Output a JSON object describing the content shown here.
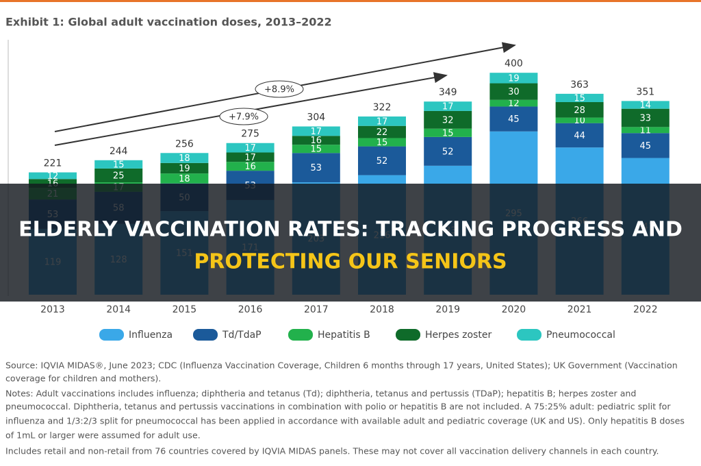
{
  "chart_data": {
    "type": "stacked-bar",
    "title": "Exhibit 1: Global adult vaccination doses, 2013–2022",
    "categories": [
      "2013",
      "2014",
      "2015",
      "2016",
      "2017",
      "2018",
      "2019",
      "2020",
      "2021",
      "2022"
    ],
    "series": [
      {
        "name": "Influenza",
        "color": "#3aa8e8",
        "values": [
          119,
          128,
          151,
          171,
          203,
          216,
          233,
          295,
          266,
          247
        ]
      },
      {
        "name": "Td/TdaP",
        "color": "#1b5a9a",
        "values": [
          53,
          58,
          50,
          53,
          53,
          52,
          52,
          45,
          44,
          45
        ]
      },
      {
        "name": "Hepatitis B",
        "color": "#22b14c",
        "values": [
          21,
          17,
          18,
          16,
          15,
          15,
          15,
          12,
          10,
          11
        ]
      },
      {
        "name": "Herpes zoster",
        "color": "#0f6b2a",
        "values": [
          16,
          25,
          19,
          17,
          16,
          22,
          32,
          30,
          28,
          33
        ]
      },
      {
        "name": "Pneumococcal",
        "color": "#2cc6c0",
        "values": [
          12,
          15,
          18,
          17,
          17,
          17,
          17,
          19,
          15,
          14
        ]
      }
    ],
    "totals": [
      221,
      244,
      256,
      275,
      304,
      322,
      349,
      400,
      363,
      351
    ],
    "ylim": [
      0,
      400
    ],
    "annotations": [
      "+8.9%",
      "+7.9%"
    ],
    "legend": "bottom",
    "notes": [
      "Source: IQVIA MIDAS®, June 2023; CDC (Influenza Vaccination Coverage, Children 6 months through 17 years, United States); UK Government (Vaccination",
      "coverage for children and mothers).",
      "Notes: Adult vaccinations includes influenza; diphtheria and tetanus (Td); diphtheria, tetanus and pertussis (TDaP); hepatitis B; herpes zoster and",
      "pneumococcal. Diphtheria, tetanus and pertussis vaccinations in combination with polio or hepatitis B are not included. A 75:25% adult: pediatric split for",
      "influenza and 1/3:2/3 split for pneumococcal has been applied in accordance with available adult and pediatric coverage (UK and US). Only hepatitis B doses",
      "of 1mL or larger were assumed for adult use.",
      "Includes retail and non-retail from 76 countries covered by IQVIA MIDAS panels. These may not cover all vaccination delivery channels in each country."
    ]
  },
  "banner": {
    "lines": [
      "ELDERLY VACCINATION RATES: TRACKING PROGRESS AND",
      "PROTECTING OUR SENIORS"
    ]
  }
}
